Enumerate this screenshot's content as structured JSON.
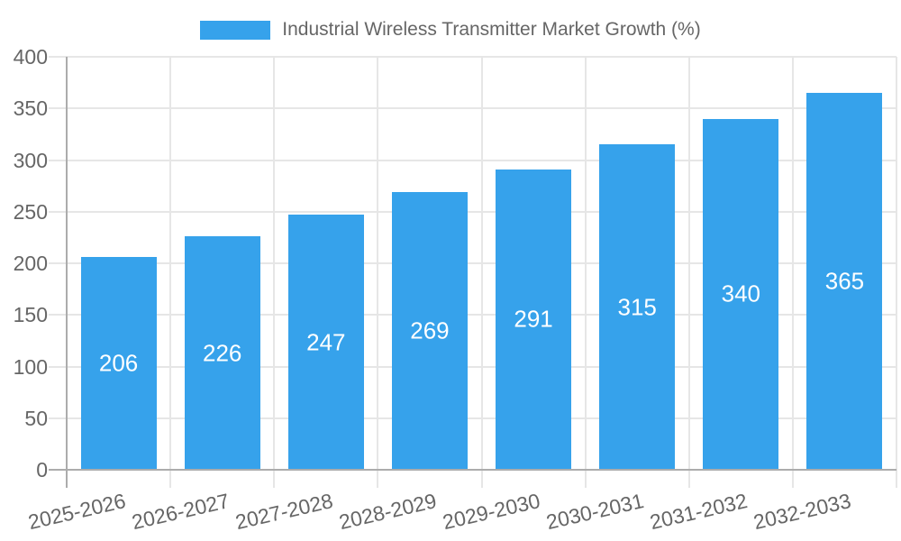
{
  "legend": {
    "label": "Industrial Wireless Transmitter Market Growth (%)",
    "swatch_color": "#36A2EB"
  },
  "chart_data": {
    "type": "bar",
    "title": "Industrial Wireless Transmitter Market Growth (%)",
    "categories": [
      "2025-2026",
      "2026-2027",
      "2027-2028",
      "2028-2029",
      "2029-2030",
      "2030-2031",
      "2031-2032",
      "2032-2033"
    ],
    "values": [
      206,
      226,
      247,
      269,
      291,
      315,
      340,
      365
    ],
    "series_name": "Industrial Wireless Transmitter Market Growth (%)",
    "xlabel": "",
    "ylabel": "",
    "ylim": [
      0,
      400
    ],
    "yticks": [
      0,
      50,
      100,
      150,
      200,
      250,
      300,
      350,
      400
    ],
    "grid": true,
    "legend_position": "top",
    "bar_color": "#36A2EB",
    "value_label_color": "#ffffff",
    "axis_text_color": "#666666",
    "grid_color": "#E6E6E6",
    "axis_line_color": "#ACACAC",
    "background": "#ffffff"
  }
}
